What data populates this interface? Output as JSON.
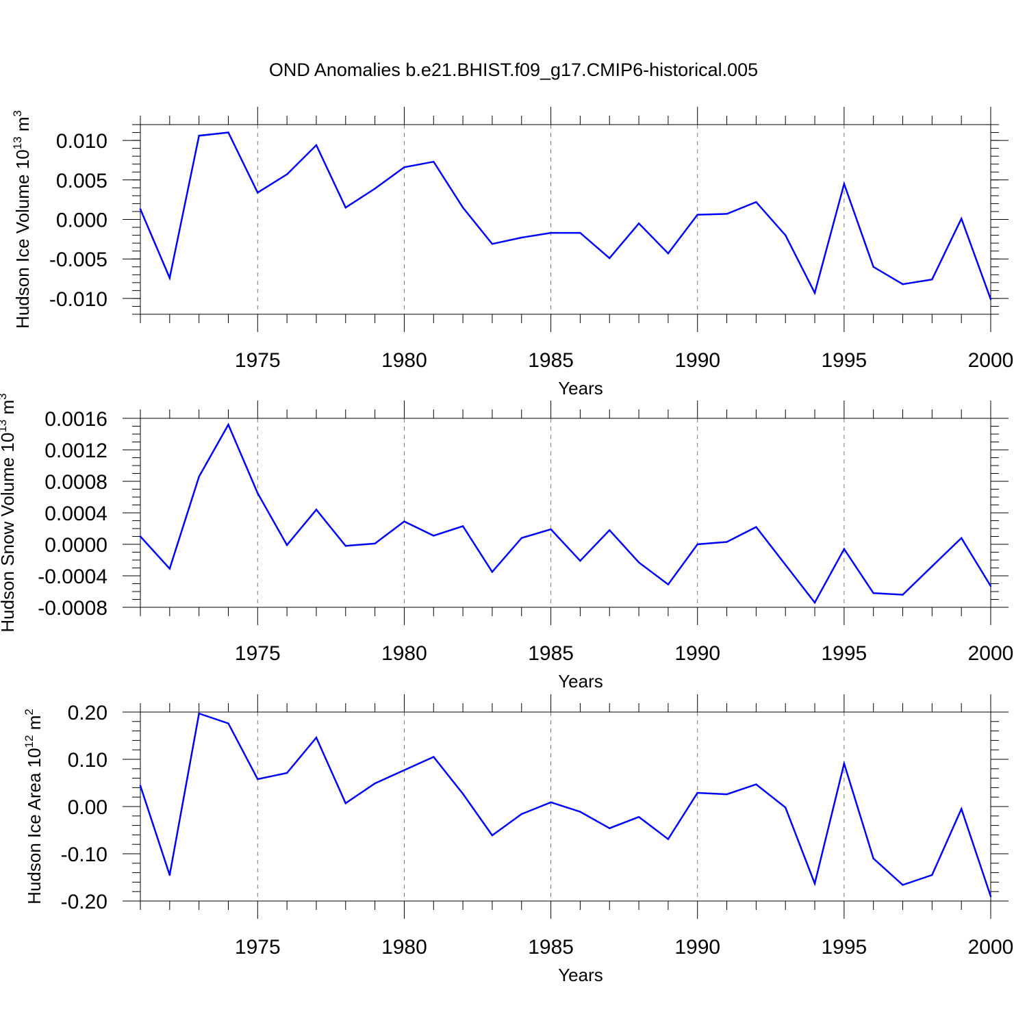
{
  "chart_data": [
    {
      "type": "line",
      "title": "OND Anomalies b.e21.BHIST.f09_g17.CMIP6-historical.005",
      "xlabel": "Years",
      "ylabel": {
        "prefix": "Hudson Ice Volume 10",
        "exp": "13",
        "unit": " m",
        "unit_exp": "3"
      },
      "xlim": [
        1971,
        2000
      ],
      "ylim": [
        -0.012,
        0.012
      ],
      "x_ticks": [
        1975,
        1980,
        1985,
        1990,
        1995,
        2000
      ],
      "x_tick_labels": [
        "1975",
        "1980",
        "1985",
        "1990",
        "1995",
        "2000"
      ],
      "y_ticks": [
        -0.01,
        -0.005,
        0,
        0.005,
        0.01
      ],
      "y_tick_labels": [
        "-0.010",
        "-0.005",
        "0.000",
        "0.005",
        "0.010"
      ],
      "y_minor_step": 0.001,
      "grid": "x-dashed",
      "x": [
        1971,
        1972,
        1973,
        1974,
        1975,
        1976,
        1977,
        1978,
        1979,
        1980,
        1981,
        1982,
        1983,
        1984,
        1985,
        1986,
        1987,
        1988,
        1989,
        1990,
        1991,
        1992,
        1993,
        1994,
        1995,
        1996,
        1997,
        1998,
        1999,
        2000
      ],
      "series": [
        {
          "name": "Hudson Ice Volume",
          "color": "#0000ff",
          "values": [
            0.0013,
            -0.0074,
            0.0106,
            0.011,
            0.0034,
            0.0057,
            0.0094,
            0.0015,
            0.0039,
            0.0066,
            0.0073,
            0.0015,
            -0.0031,
            -0.0023,
            -0.0017,
            -0.0017,
            -0.0049,
            -0.0005,
            -0.0043,
            0.0006,
            0.0007,
            0.0022,
            -0.002,
            -0.0093,
            0.0045,
            -0.006,
            -0.0082,
            -0.0076,
            0.0001,
            -0.0101
          ]
        }
      ]
    },
    {
      "type": "line",
      "title": "",
      "xlabel": "Years",
      "ylabel": {
        "prefix": "Hudson Snow Volume 10",
        "exp": "13",
        "unit": " m",
        "unit_exp": "3"
      },
      "xlim": [
        1971,
        2000
      ],
      "ylim": [
        -0.0008,
        0.0016
      ],
      "x_ticks": [
        1975,
        1980,
        1985,
        1990,
        1995,
        2000
      ],
      "x_tick_labels": [
        "1975",
        "1980",
        "1985",
        "1990",
        "1995",
        "2000"
      ],
      "y_ticks": [
        -0.0008,
        -0.0004,
        0,
        0.0004,
        0.0008,
        0.0012,
        0.0016
      ],
      "y_tick_labels": [
        "-0.0008",
        "-0.0004",
        "0.0000",
        "0.0004",
        "0.0008",
        "0.0012",
        "0.0016"
      ],
      "y_minor_step": 0.0001,
      "grid": "x-dashed",
      "x": [
        1971,
        1972,
        1973,
        1974,
        1975,
        1976,
        1977,
        1978,
        1979,
        1980,
        1981,
        1982,
        1983,
        1984,
        1985,
        1986,
        1987,
        1988,
        1989,
        1990,
        1991,
        1992,
        1993,
        1994,
        1995,
        1996,
        1997,
        1998,
        1999,
        2000
      ],
      "series": [
        {
          "name": "Hudson Snow Volume",
          "color": "#0000ff",
          "values": [
            0.0001,
            -0.00031,
            0.00086,
            0.00152,
            0.00065,
            -1e-05,
            0.00044,
            -2e-05,
            1e-05,
            0.00029,
            0.00011,
            0.00023,
            -0.00035,
            8e-05,
            0.00019,
            -0.00021,
            0.00018,
            -0.00023,
            -0.00051,
            0.0,
            3e-05,
            0.00022,
            -0.00026,
            -0.00074,
            -6e-05,
            -0.00062,
            -0.00064,
            -0.00028,
            8e-05,
            -0.00053
          ]
        }
      ]
    },
    {
      "type": "line",
      "title": "",
      "xlabel": "Years",
      "ylabel": {
        "prefix": "Hudson Ice Area 10",
        "exp": "12",
        "unit": " m",
        "unit_exp": "2"
      },
      "xlim": [
        1971,
        2000
      ],
      "ylim": [
        -0.2,
        0.2
      ],
      "x_ticks": [
        1975,
        1980,
        1985,
        1990,
        1995,
        2000
      ],
      "x_tick_labels": [
        "1975",
        "1980",
        "1985",
        "1990",
        "1995",
        "2000"
      ],
      "y_ticks": [
        -0.2,
        -0.1,
        0,
        0.1,
        0.2
      ],
      "y_tick_labels": [
        "-0.20",
        "-0.10",
        "0.00",
        "0.10",
        "0.20"
      ],
      "y_minor_step": 0.02,
      "grid": "x-dashed",
      "x": [
        1971,
        1972,
        1973,
        1974,
        1975,
        1976,
        1977,
        1978,
        1979,
        1980,
        1981,
        1982,
        1983,
        1984,
        1985,
        1986,
        1987,
        1988,
        1989,
        1990,
        1991,
        1992,
        1993,
        1994,
        1995,
        1996,
        1997,
        1998,
        1999,
        2000
      ],
      "series": [
        {
          "name": "Hudson Ice Area",
          "color": "#0000ff",
          "values": [
            0.044,
            -0.145,
            0.197,
            0.176,
            0.058,
            0.071,
            0.146,
            0.007,
            0.049,
            0.077,
            0.105,
            0.027,
            -0.061,
            -0.016,
            0.009,
            -0.011,
            -0.046,
            -0.022,
            -0.069,
            0.029,
            0.026,
            0.047,
            -0.002,
            -0.163,
            0.091,
            -0.11,
            -0.166,
            -0.145,
            -0.005,
            -0.19
          ]
        }
      ]
    }
  ]
}
